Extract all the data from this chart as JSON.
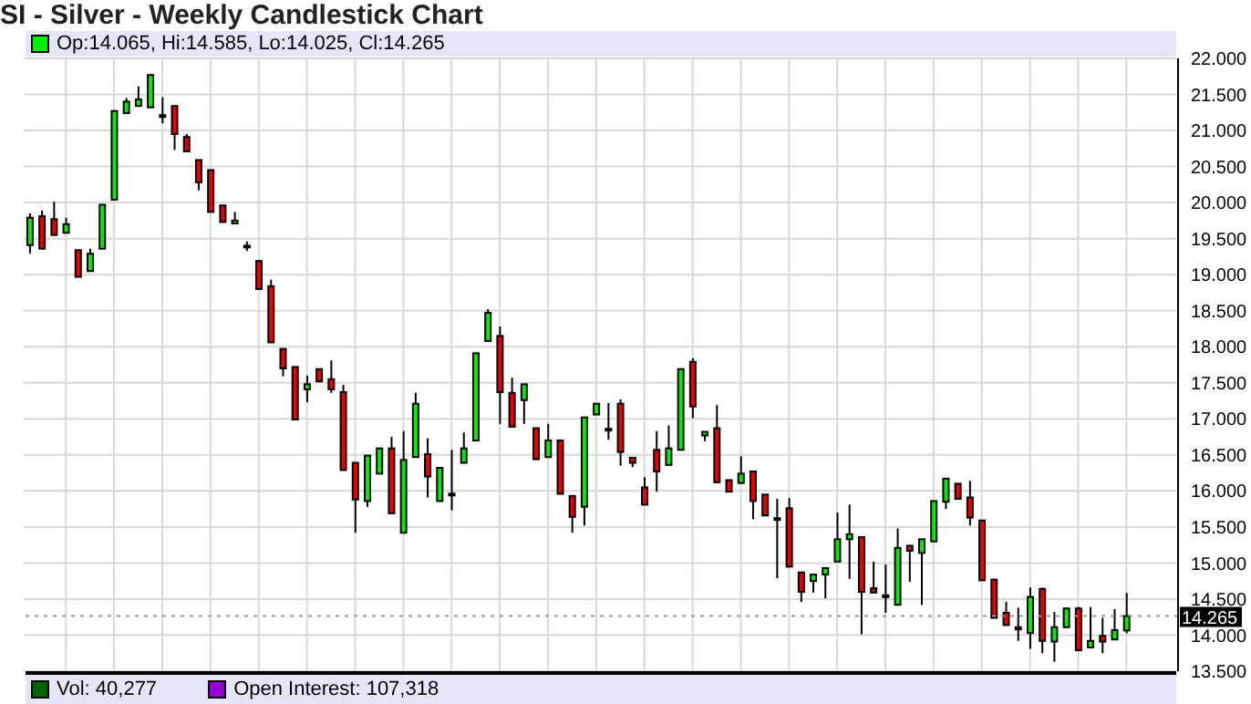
{
  "chart_data": {
    "type": "candlestick",
    "title": "SI - Silver - Weekly Candlestick Chart",
    "categories": [
      null,
      null,
      null,
      null,
      null,
      null,
      null,
      null,
      null,
      null,
      null,
      null,
      null,
      null,
      null,
      null,
      null,
      null,
      null,
      null,
      null,
      null,
      null,
      null,
      null,
      null,
      null,
      null,
      null,
      null,
      null,
      null,
      null,
      null,
      null,
      null,
      null,
      null,
      null,
      null,
      null,
      null,
      null,
      null,
      null,
      null,
      null,
      null,
      null,
      null,
      null,
      null,
      null,
      null,
      null,
      null,
      null,
      null,
      null,
      null,
      null,
      null,
      null,
      null,
      null,
      null,
      null,
      null,
      null,
      null,
      null,
      null,
      null,
      null,
      null,
      null,
      null,
      null,
      null,
      null,
      null,
      null,
      null,
      null,
      null,
      null,
      null,
      null,
      null,
      null,
      null,
      null
    ],
    "ohlc": [
      [
        19.41,
        19.85,
        19.29,
        19.79
      ],
      [
        19.81,
        19.89,
        19.36,
        19.36
      ],
      [
        19.77,
        20.01,
        19.55,
        19.55
      ],
      [
        19.58,
        19.79,
        19.58,
        19.7
      ],
      [
        19.34,
        19.34,
        18.97,
        18.97
      ],
      [
        19.05,
        19.36,
        19.05,
        19.29
      ],
      [
        19.36,
        19.97,
        19.36,
        19.97
      ],
      [
        20.04,
        21.27,
        20.04,
        21.27
      ],
      [
        21.24,
        21.45,
        21.24,
        21.4
      ],
      [
        21.34,
        21.61,
        21.34,
        21.43
      ],
      [
        21.32,
        21.77,
        21.32,
        21.77
      ],
      [
        21.2,
        21.46,
        21.1,
        21.2
      ],
      [
        21.34,
        21.34,
        20.73,
        20.95
      ],
      [
        20.91,
        20.95,
        20.71,
        20.71
      ],
      [
        20.59,
        20.59,
        20.17,
        20.28
      ],
      [
        20.45,
        20.45,
        19.87,
        19.87
      ],
      [
        19.96,
        19.96,
        19.73,
        19.73
      ],
      [
        19.71,
        19.87,
        19.71,
        19.75
      ],
      [
        19.39,
        19.46,
        19.33,
        19.39
      ],
      [
        19.19,
        19.19,
        18.8,
        18.8
      ],
      [
        18.84,
        18.93,
        18.06,
        18.06
      ],
      [
        17.97,
        17.97,
        17.59,
        17.7
      ],
      [
        17.72,
        17.72,
        16.99,
        16.99
      ],
      [
        17.41,
        17.6,
        17.23,
        17.48
      ],
      [
        17.69,
        17.69,
        17.52,
        17.52
      ],
      [
        17.55,
        17.81,
        17.36,
        17.41
      ],
      [
        17.37,
        17.47,
        16.29,
        16.29
      ],
      [
        16.39,
        16.39,
        15.42,
        15.88
      ],
      [
        15.86,
        16.49,
        15.78,
        16.49
      ],
      [
        16.24,
        16.59,
        16.24,
        16.59
      ],
      [
        16.59,
        16.75,
        15.69,
        15.69
      ],
      [
        15.42,
        16.83,
        15.42,
        16.43
      ],
      [
        16.47,
        17.36,
        16.47,
        17.21
      ],
      [
        16.51,
        16.73,
        15.91,
        16.2
      ],
      [
        15.86,
        16.32,
        15.86,
        16.32
      ],
      [
        15.95,
        16.57,
        15.73,
        15.95
      ],
      [
        16.39,
        16.81,
        16.39,
        16.59
      ],
      [
        16.7,
        17.91,
        16.7,
        17.91
      ],
      [
        18.08,
        18.52,
        18.08,
        18.47
      ],
      [
        18.15,
        18.28,
        16.93,
        17.37
      ],
      [
        17.36,
        17.57,
        16.89,
        16.89
      ],
      [
        17.26,
        17.48,
        16.93,
        17.48
      ],
      [
        16.87,
        16.87,
        16.44,
        16.44
      ],
      [
        16.47,
        16.93,
        16.47,
        16.7
      ],
      [
        16.7,
        16.7,
        15.96,
        15.96
      ],
      [
        15.93,
        15.93,
        15.42,
        15.64
      ],
      [
        15.78,
        17.02,
        15.52,
        17.02
      ],
      [
        17.06,
        17.21,
        17.06,
        17.21
      ],
      [
        16.85,
        17.22,
        16.71,
        16.85
      ],
      [
        17.21,
        17.27,
        16.35,
        16.54
      ],
      [
        16.46,
        16.46,
        16.33,
        16.39
      ],
      [
        16.05,
        16.19,
        15.81,
        15.81
      ],
      [
        16.57,
        16.83,
        15.99,
        16.27
      ],
      [
        16.36,
        16.91,
        16.36,
        16.59
      ],
      [
        16.57,
        17.69,
        16.57,
        17.69
      ],
      [
        17.79,
        17.84,
        17.01,
        17.17
      ],
      [
        16.77,
        16.82,
        16.69,
        16.82
      ],
      [
        16.87,
        17.19,
        16.12,
        16.12
      ],
      [
        16.15,
        16.15,
        15.99,
        15.99
      ],
      [
        16.11,
        16.48,
        16.11,
        16.24
      ],
      [
        16.27,
        16.27,
        15.61,
        15.86
      ],
      [
        15.95,
        15.95,
        15.66,
        15.66
      ],
      [
        15.61,
        15.89,
        14.79,
        15.61
      ],
      [
        15.76,
        15.9,
        14.95,
        14.95
      ],
      [
        14.87,
        14.87,
        14.46,
        14.6
      ],
      [
        14.75,
        14.84,
        14.59,
        14.84
      ],
      [
        14.84,
        14.93,
        14.51,
        14.93
      ],
      [
        15.02,
        15.7,
        15.02,
        15.33
      ],
      [
        15.33,
        15.81,
        14.78,
        15.4
      ],
      [
        15.36,
        15.36,
        14.01,
        14.6
      ],
      [
        14.65,
        15.02,
        14.59,
        14.59
      ],
      [
        14.54,
        14.98,
        14.31,
        14.54
      ],
      [
        14.42,
        15.48,
        14.42,
        15.21
      ],
      [
        15.24,
        15.24,
        14.74,
        15.17
      ],
      [
        15.14,
        15.33,
        14.42,
        15.33
      ],
      [
        15.3,
        15.86,
        15.3,
        15.86
      ],
      [
        15.85,
        16.17,
        15.75,
        16.17
      ],
      [
        16.1,
        16.1,
        15.89,
        15.89
      ],
      [
        15.91,
        16.14,
        15.52,
        15.63
      ],
      [
        15.59,
        15.59,
        14.76,
        14.76
      ],
      [
        14.77,
        14.77,
        14.24,
        14.24
      ],
      [
        14.31,
        14.46,
        14.14,
        14.14
      ],
      [
        14.11,
        14.38,
        13.92,
        14.08
      ],
      [
        14.03,
        14.66,
        13.81,
        14.53
      ],
      [
        14.64,
        14.66,
        13.75,
        13.92
      ],
      [
        13.91,
        14.32,
        13.63,
        14.11
      ],
      [
        14.11,
        14.37,
        14.11,
        14.37
      ],
      [
        14.37,
        14.39,
        13.79,
        13.79
      ],
      [
        13.83,
        14.39,
        13.83,
        13.92
      ],
      [
        13.99,
        14.24,
        13.75,
        13.91
      ],
      [
        13.94,
        14.36,
        13.94,
        14.07
      ],
      [
        14.065,
        14.585,
        14.025,
        14.265
      ]
    ],
    "colors": [
      "#00ee00",
      "#ee0000",
      "#ee0000",
      "#00ee00",
      "#ee0000",
      "#00ee00",
      "#00ee00",
      "#00ee00",
      "#00ee00",
      "#00ee00",
      "#00ee00",
      "#000000",
      "#ee0000",
      "#ee0000",
      "#ee0000",
      "#ee0000",
      "#ee0000",
      "#00ee00",
      "#000000",
      "#ee0000",
      "#ee0000",
      "#ee0000",
      "#ee0000",
      "#00ee00",
      "#ee0000",
      "#ee0000",
      "#ee0000",
      "#ee0000",
      "#00ee00",
      "#00ee00",
      "#ee0000",
      "#00ee00",
      "#00ee00",
      "#ee0000",
      "#00ee00",
      "#000000",
      "#00ee00",
      "#00ee00",
      "#00ee00",
      "#ee0000",
      "#ee0000",
      "#00ee00",
      "#ee0000",
      "#00ee00",
      "#ee0000",
      "#ee0000",
      "#00ee00",
      "#00ee00",
      "#000000",
      "#ee0000",
      "#ee0000",
      "#ee0000",
      "#ee0000",
      "#00ee00",
      "#00ee00",
      "#ee0000",
      "#00ee00",
      "#ee0000",
      "#ee0000",
      "#00ee00",
      "#ee0000",
      "#ee0000",
      "#000000",
      "#ee0000",
      "#ee0000",
      "#00ee00",
      "#00ee00",
      "#00ee00",
      "#00ee00",
      "#ee0000",
      "#ee0000",
      "#000000",
      "#00ee00",
      "#ee0000",
      "#00ee00",
      "#00ee00",
      "#00ee00",
      "#ee0000",
      "#ee0000",
      "#ee0000",
      "#ee0000",
      "#ee0000",
      "#ee0000",
      "#00ee00",
      "#ee0000",
      "#00ee00",
      "#00ee00",
      "#ee0000",
      "#00ee00",
      "#ee0000",
      "#00ee00",
      "#00ee00"
    ],
    "ylim": [
      13.5,
      22
    ],
    "yticks": [
      {
        "value": 13.5,
        "label": "13.500"
      },
      {
        "value": 14,
        "label": "14.000"
      },
      {
        "value": 14.5,
        "label": "14.500"
      },
      {
        "value": 15,
        "label": "15.000"
      },
      {
        "value": 15.5,
        "label": "15.500"
      },
      {
        "value": 16,
        "label": "16.000"
      },
      {
        "value": 16.5,
        "label": "16.500"
      },
      {
        "value": 17,
        "label": "17.000"
      },
      {
        "value": 17.5,
        "label": "17.500"
      },
      {
        "value": 18,
        "label": "18.000"
      },
      {
        "value": 18.5,
        "label": "18.500"
      },
      {
        "value": 19,
        "label": "19.000"
      },
      {
        "value": 19.5,
        "label": "19.500"
      },
      {
        "value": 20,
        "label": "20.000"
      },
      {
        "value": 20.5,
        "label": "20.500"
      },
      {
        "value": 21,
        "label": "21.000"
      },
      {
        "value": 21.5,
        "label": "21.500"
      },
      {
        "value": 22,
        "label": "22.000"
      }
    ],
    "ref_lines": [
      {
        "axis": "y",
        "value": 14.265,
        "label": "14.265"
      }
    ],
    "annotations": [
      "Op:14.065, Hi:14.585, Lo:14.025, Cl:14.265",
      "Vol: 40,277",
      "Open Interest: 107,318"
    ],
    "grid": true,
    "tick_labels": "y"
  }
}
